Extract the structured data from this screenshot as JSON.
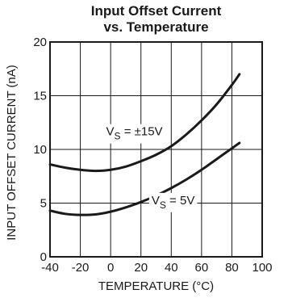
{
  "chart_data": {
    "type": "line",
    "title_line1": "Input Offset Current",
    "title_line2": "vs. Temperature",
    "xlabel": "TEMPERATURE (°C)",
    "ylabel": "INPUT OFFSET CURRENT (nA)",
    "xlim": [
      -40,
      100
    ],
    "ylim": [
      0,
      20
    ],
    "xticks": [
      -40,
      -20,
      0,
      20,
      40,
      60,
      80,
      100
    ],
    "yticks": [
      0,
      5,
      10,
      15,
      20
    ],
    "xtick_labels": [
      "-40",
      "-20",
      "0",
      "20",
      "40",
      "60",
      "80",
      "100"
    ],
    "ytick_labels": [
      "0",
      "5",
      "10",
      "15",
      "20"
    ],
    "grid": true,
    "colors": {
      "line": "#1a1a1a",
      "grid": "#1a1a1a"
    },
    "series": [
      {
        "annotation": {
          "main": "V",
          "sub": "S",
          "rest": " = ±15V"
        },
        "x": [
          -40,
          -30,
          -20,
          -10,
          0,
          10,
          20,
          30,
          40,
          50,
          60,
          70,
          80,
          85
        ],
        "y": [
          8.6,
          8.3,
          8.1,
          8.0,
          8.1,
          8.4,
          8.9,
          9.5,
          10.3,
          11.4,
          12.7,
          14.2,
          16.0,
          17.0
        ]
      },
      {
        "annotation": {
          "main": "V",
          "sub": "S",
          "rest": " = 5V"
        },
        "x": [
          -40,
          -30,
          -20,
          -10,
          0,
          10,
          20,
          30,
          40,
          50,
          60,
          70,
          80,
          85
        ],
        "y": [
          4.3,
          4.0,
          3.9,
          3.95,
          4.2,
          4.6,
          5.1,
          5.7,
          6.4,
          7.2,
          8.1,
          9.1,
          10.1,
          10.6
        ]
      }
    ]
  }
}
